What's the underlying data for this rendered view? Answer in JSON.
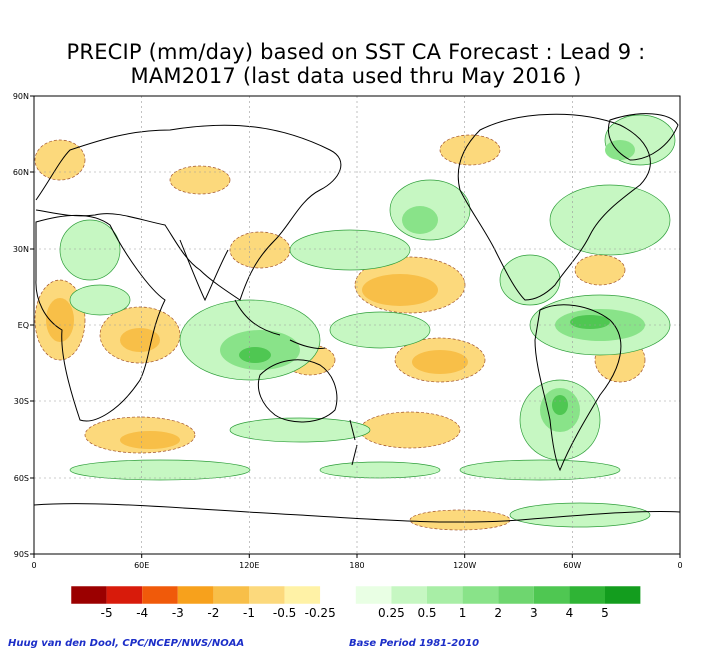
{
  "title_line1": "PRECIP (mm/day) based on SST CA Forecast : Lead 9 :",
  "title_line2": "MAM2017 (last data used thru May 2016 )",
  "lat_labels": [
    "90N",
    "60N",
    "30N",
    "EQ",
    "30S",
    "60S",
    "90S"
  ],
  "lon_labels": [
    "0",
    "60E",
    "120E",
    "180",
    "120W",
    "60W",
    "0"
  ],
  "legend": {
    "colors": [
      "#9b0000",
      "#d81b0b",
      "#f05a0a",
      "#f7a11c",
      "#f8bf48",
      "#fcd97c",
      "#fff2a6",
      "#ffffff",
      "#e9ffe4",
      "#c6f7c2",
      "#a8eea6",
      "#89e389",
      "#6ed66f",
      "#4fc752",
      "#2fb435",
      "#139d1e"
    ],
    "labels": [
      "-5",
      "-4",
      "-3",
      "-2",
      "-1",
      "-0.5",
      "-0.25",
      "0.25",
      "0.5",
      "1",
      "2",
      "3",
      "4",
      "5"
    ]
  },
  "footer": {
    "credit": "Huug van den Dool, CPC/NCEP/NWS/NOAA",
    "base_period": "Base Period 1981-2010"
  }
}
